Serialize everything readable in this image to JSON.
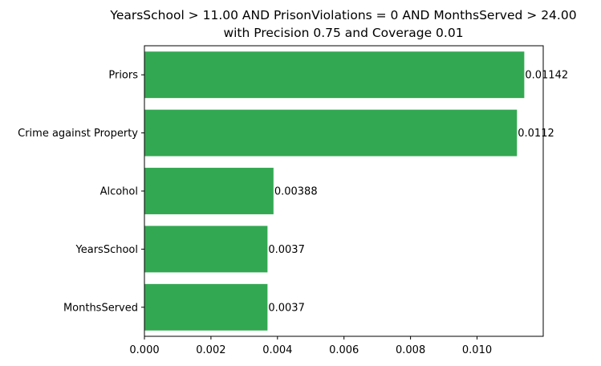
{
  "chart_data": {
    "type": "bar",
    "orientation": "horizontal",
    "title_lines": [
      "YearsSchool > 11.00 AND PrisonViolations = 0 AND MonthsServed > 24.00",
      "with Precision 0.75 and Coverage 0.01"
    ],
    "categories": [
      "Priors",
      "Crime against Property",
      "Alcohol",
      "YearsSchool",
      "MonthsServed"
    ],
    "values": [
      0.01142,
      0.0112,
      0.00388,
      0.0037,
      0.0037
    ],
    "value_labels": [
      "0.01142",
      "0.0112",
      "0.00388",
      "0.0037",
      "0.0037"
    ],
    "xlim": [
      0,
      0.01199
    ],
    "xticks": [
      0.0,
      0.002,
      0.004,
      0.006,
      0.008,
      0.01
    ],
    "xtick_labels": [
      "0.000",
      "0.002",
      "0.004",
      "0.006",
      "0.008",
      "0.010"
    ],
    "xlabel": "",
    "ylabel": "",
    "grid": false,
    "bar_color": "#33a852"
  }
}
